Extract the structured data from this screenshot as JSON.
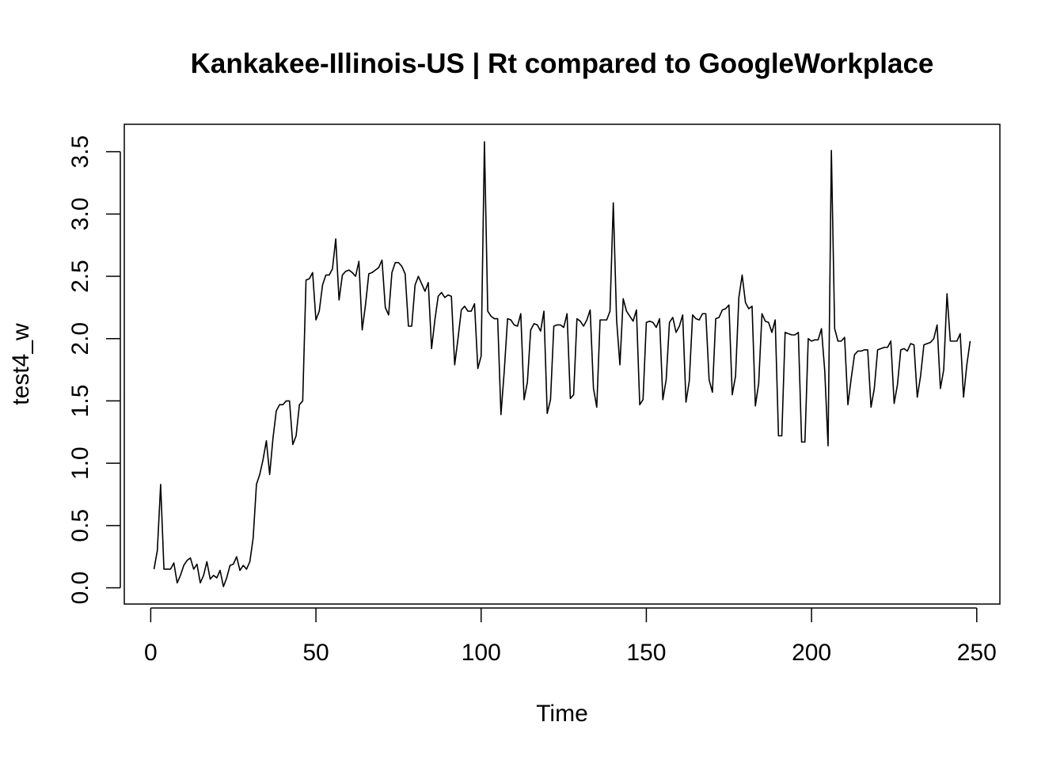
{
  "chart_data": {
    "type": "line",
    "title": "Kankakee-Illinois-US | Rt compared to GoogleWorkplace",
    "xlabel": "Time",
    "ylabel": "test4_w",
    "xlim": [
      -8,
      257
    ],
    "ylim": [
      -0.13,
      3.72
    ],
    "x_ticks": [
      0,
      50,
      100,
      150,
      200,
      250
    ],
    "x_tick_labels": [
      "0",
      "50",
      "100",
      "150",
      "200",
      "250"
    ],
    "y_ticks": [
      0,
      0.5,
      1,
      1.5,
      2,
      2.5,
      3,
      3.5
    ],
    "y_tick_labels": [
      "0.0",
      "0.5",
      "1.0",
      "1.5",
      "2.0",
      "2.5",
      "3.0",
      "3.5"
    ],
    "grid": false,
    "line_color": "#000000",
    "series": [
      {
        "x_start": 1,
        "values": [
          0.15,
          0.3,
          0.83,
          0.15,
          0.15,
          0.15,
          0.2,
          0.04,
          0.1,
          0.18,
          0.22,
          0.24,
          0.15,
          0.19,
          0.04,
          0.1,
          0.21,
          0.07,
          0.1,
          0.08,
          0.14,
          0.01,
          0.08,
          0.18,
          0.19,
          0.25,
          0.14,
          0.18,
          0.15,
          0.21,
          0.4,
          0.83,
          0.91,
          1.03,
          1.18,
          0.91,
          1.2,
          1.42,
          1.47,
          1.47,
          1.5,
          1.5,
          1.15,
          1.22,
          1.47,
          1.5,
          2.47,
          2.48,
          2.53,
          2.15,
          2.22,
          2.43,
          2.51,
          2.51,
          2.56,
          2.8,
          2.31,
          2.51,
          2.54,
          2.55,
          2.53,
          2.5,
          2.62,
          2.07,
          2.27,
          2.52,
          2.53,
          2.55,
          2.57,
          2.63,
          2.25,
          2.19,
          2.53,
          2.61,
          2.61,
          2.58,
          2.52,
          2.1,
          2.1,
          2.43,
          2.5,
          2.44,
          2.38,
          2.45,
          1.92,
          2.15,
          2.34,
          2.37,
          2.33,
          2.35,
          2.34,
          1.79,
          2.0,
          2.23,
          2.26,
          2.22,
          2.22,
          2.28,
          1.76,
          1.86,
          3.58,
          2.22,
          2.18,
          2.16,
          2.16,
          1.39,
          1.74,
          2.16,
          2.15,
          2.11,
          2.1,
          2.2,
          1.51,
          1.65,
          2.07,
          2.12,
          2.11,
          2.06,
          2.22,
          1.4,
          1.51,
          2.1,
          2.11,
          2.11,
          2.09,
          2.2,
          1.52,
          1.55,
          2.16,
          2.14,
          2.1,
          2.15,
          2.23,
          1.6,
          1.45,
          2.15,
          2.15,
          2.15,
          2.22,
          3.09,
          2.15,
          1.79,
          2.32,
          2.22,
          2.18,
          2.14,
          2.23,
          1.47,
          1.51,
          2.13,
          2.14,
          2.13,
          2.09,
          2.16,
          1.51,
          1.67,
          2.13,
          2.17,
          2.05,
          2.1,
          2.19,
          1.49,
          1.66,
          2.19,
          2.16,
          2.15,
          2.2,
          2.2,
          1.67,
          1.57,
          2.16,
          2.17,
          2.23,
          2.24,
          2.27,
          1.55,
          1.7,
          2.33,
          2.51,
          2.29,
          2.24,
          2.26,
          1.46,
          1.64,
          2.2,
          2.14,
          2.13,
          2.05,
          2.15,
          1.22,
          1.22,
          2.05,
          2.04,
          2.03,
          2.03,
          2.05,
          1.17,
          1.17,
          2.0,
          1.98,
          1.99,
          1.99,
          2.08,
          1.74,
          1.14,
          3.51,
          2.08,
          1.98,
          1.98,
          2.01,
          1.47,
          1.68,
          1.87,
          1.9,
          1.9,
          1.91,
          1.91,
          1.45,
          1.6,
          1.91,
          1.92,
          1.93,
          1.93,
          1.98,
          1.48,
          1.63,
          1.91,
          1.92,
          1.9,
          1.96,
          1.95,
          1.53,
          1.7,
          1.95,
          1.96,
          1.97,
          2.0,
          2.11,
          1.6,
          1.75,
          2.36,
          1.98,
          1.98,
          1.98,
          2.04,
          1.53,
          1.79,
          1.98
        ]
      }
    ]
  }
}
